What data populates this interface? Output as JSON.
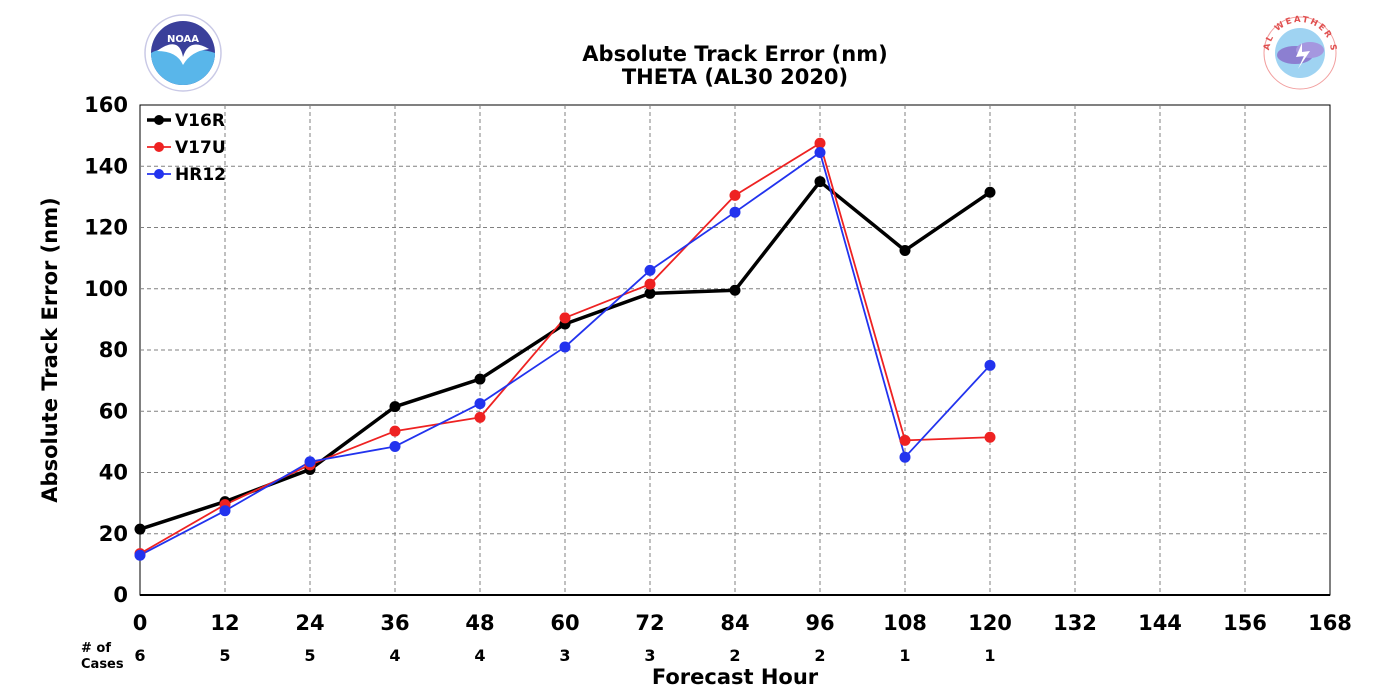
{
  "chart_data": {
    "type": "line",
    "title": "Absolute Track Error (nm)",
    "subtitle": "THETA (AL30 2020)",
    "xlabel": "Forecast Hour",
    "ylabel": "Absolute Track Error (nm)",
    "xlim": [
      0,
      168
    ],
    "ylim": [
      0,
      160
    ],
    "x_ticks": [
      0,
      12,
      24,
      36,
      48,
      60,
      72,
      84,
      96,
      108,
      120,
      132,
      144,
      156,
      168
    ],
    "y_ticks": [
      0,
      20,
      40,
      60,
      80,
      100,
      120,
      140,
      160
    ],
    "grid": true,
    "legend_position": "top-left",
    "x": [
      0,
      12,
      24,
      36,
      48,
      60,
      72,
      84,
      96,
      108,
      120
    ],
    "series": [
      {
        "name": "V16R",
        "color": "#000000",
        "values": [
          21.5,
          30.5,
          41,
          61.5,
          70.5,
          88.5,
          98.5,
          99.5,
          135,
          112.5,
          131.5
        ]
      },
      {
        "name": "V17U",
        "color": "#ee2222",
        "values": [
          13.5,
          29.5,
          42.5,
          53.5,
          58,
          90.5,
          101.5,
          130.5,
          147.5,
          50.5,
          51.5
        ]
      },
      {
        "name": "HR12",
        "color": "#2233ee",
        "values": [
          13,
          27.5,
          43.5,
          48.5,
          62.5,
          81,
          106,
          125,
          144.5,
          45,
          75
        ]
      }
    ],
    "cases_header": "# of\nCases",
    "cases": [
      6,
      5,
      5,
      4,
      4,
      3,
      3,
      2,
      2,
      1,
      1
    ]
  },
  "logos": {
    "left": {
      "name": "NOAA"
    },
    "right": {
      "name": "NATIONAL WEATHER SERVICE"
    }
  }
}
